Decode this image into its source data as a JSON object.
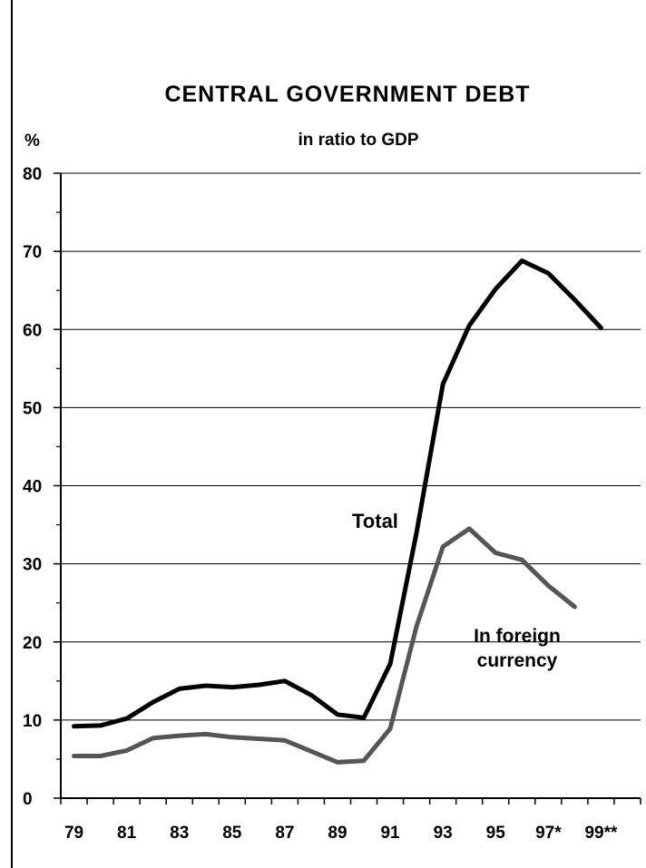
{
  "chart_data": {
    "type": "line",
    "title": "CENTRAL GOVERNMENT DEBT",
    "subtitle": "in ratio to GDP",
    "ylabel": "%",
    "ylim": [
      0,
      80
    ],
    "yticks": [
      0,
      10,
      20,
      30,
      40,
      50,
      60,
      70,
      80
    ],
    "xlim": [
      1978.5,
      2000.5
    ],
    "xtick_labels": [
      {
        "x": 1979,
        "label": "79"
      },
      {
        "x": 1981,
        "label": "81"
      },
      {
        "x": 1983,
        "label": "83"
      },
      {
        "x": 1985,
        "label": "85"
      },
      {
        "x": 1987,
        "label": "87"
      },
      {
        "x": 1989,
        "label": "89"
      },
      {
        "x": 1991,
        "label": "91"
      },
      {
        "x": 1993,
        "label": "93"
      },
      {
        "x": 1995,
        "label": "95"
      },
      {
        "x": 1997,
        "label": "97*"
      },
      {
        "x": 1999,
        "label": "99**"
      }
    ],
    "grid": "horizontal",
    "series": [
      {
        "name": "Total",
        "color": "#000000",
        "x": [
          1979,
          1980,
          1981,
          1982,
          1983,
          1984,
          1985,
          1986,
          1987,
          1988,
          1989,
          1990,
          1991,
          1992,
          1993,
          1994,
          1995,
          1996,
          1997,
          1998,
          1999
        ],
        "values": [
          9.2,
          9.3,
          10.2,
          12.3,
          14.0,
          14.4,
          14.2,
          14.5,
          15.0,
          13.2,
          10.7,
          10.3,
          17.2,
          34.0,
          53.0,
          60.5,
          65.2,
          68.8,
          67.2,
          63.8,
          60.2
        ]
      },
      {
        "name": "In foreign currency",
        "name_lines": [
          "In foreign",
          "currency"
        ],
        "color": "#555555",
        "x": [
          1979,
          1980,
          1981,
          1982,
          1983,
          1984,
          1985,
          1986,
          1987,
          1988,
          1989,
          1990,
          1991,
          1992,
          1993,
          1994,
          1995,
          1996,
          1997,
          1998
        ],
        "values": [
          5.4,
          5.4,
          6.1,
          7.7,
          8.0,
          8.2,
          7.8,
          7.6,
          7.4,
          6.0,
          4.6,
          4.8,
          8.9,
          22.0,
          32.2,
          34.5,
          31.4,
          30.5,
          27.2,
          24.5
        ]
      }
    ]
  }
}
